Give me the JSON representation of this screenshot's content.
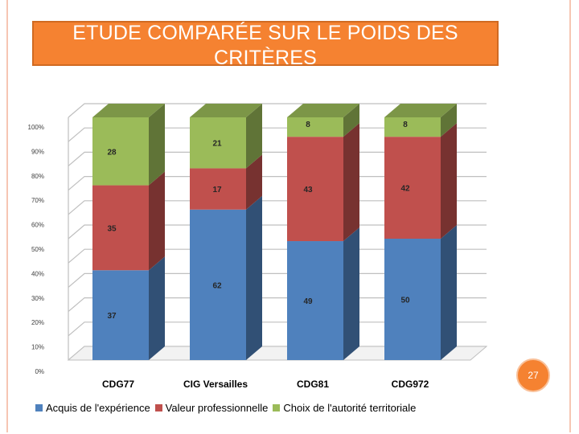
{
  "slide": {
    "title": "ETUDE COMPARÉE SUR LE POIDS DES CRITÈRES",
    "number": "27"
  },
  "chart_data": {
    "type": "bar",
    "stacked": true,
    "normalized": true,
    "categories": [
      "CDG77",
      "CIG Versailles",
      "CDG81",
      "CDG972"
    ],
    "series": [
      {
        "name": "Acquis de l'expérience",
        "values": [
          37,
          62,
          49,
          50
        ],
        "color": "#4f81bd"
      },
      {
        "name": "Valeur professionnelle",
        "values": [
          35,
          17,
          43,
          42
        ],
        "color": "#c0504d"
      },
      {
        "name": "Choix de l'autorité territoriale",
        "values": [
          28,
          21,
          8,
          8
        ],
        "color": "#9bbb59"
      }
    ],
    "yticks": [
      "0%",
      "10%",
      "20%",
      "30%",
      "40%",
      "50%",
      "60%",
      "70%",
      "80%",
      "90%",
      "100%"
    ],
    "ylim": [
      0,
      100
    ],
    "grid": true,
    "legend": "bottom"
  }
}
